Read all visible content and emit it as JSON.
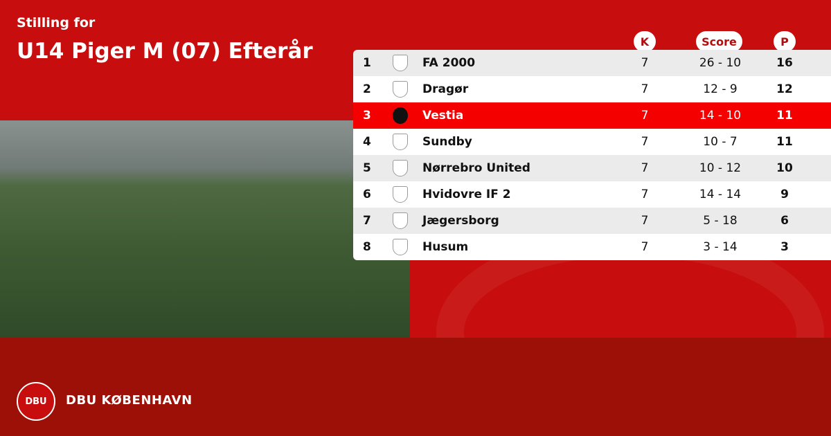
{
  "header": {
    "subtitle": "Stilling for",
    "title": "U14 Piger M (07) Efterår"
  },
  "columns": {
    "k": "K",
    "score": "Score",
    "p": "P"
  },
  "rows": [
    {
      "rank": "1",
      "team": "FA 2000",
      "k": "7",
      "score": "26 - 10",
      "p": "16",
      "logo": "shield-icon"
    },
    {
      "rank": "2",
      "team": "Dragør",
      "k": "7",
      "score": "12 - 9",
      "p": "12",
      "logo": "shield-icon"
    },
    {
      "rank": "3",
      "team": "Vestia",
      "k": "7",
      "score": "14 - 10",
      "p": "11",
      "logo": "vestia-logo",
      "highlight": true
    },
    {
      "rank": "4",
      "team": "Sundby",
      "k": "7",
      "score": "10 - 7",
      "p": "11",
      "logo": "sundby-logo"
    },
    {
      "rank": "5",
      "team": "Nørrebro United",
      "k": "7",
      "score": "10 - 12",
      "p": "10",
      "logo": "norrebro-logo"
    },
    {
      "rank": "6",
      "team": "Hvidovre IF 2",
      "k": "7",
      "score": "14 - 14",
      "p": "9",
      "logo": "hvidovre-logo"
    },
    {
      "rank": "7",
      "team": "Jægersborg",
      "k": "7",
      "score": "5 - 18",
      "p": "6",
      "logo": "jaegersborg-logo"
    },
    {
      "rank": "8",
      "team": "Husum",
      "k": "7",
      "score": "3 - 14",
      "p": "3",
      "logo": "shield-icon"
    }
  ],
  "footer": {
    "brand": "DBU KØBENHAVN",
    "seal_text": "DBU"
  },
  "colors": {
    "primary": "#c70d0d",
    "footer": "#9c1008",
    "highlight": "#f50000"
  }
}
